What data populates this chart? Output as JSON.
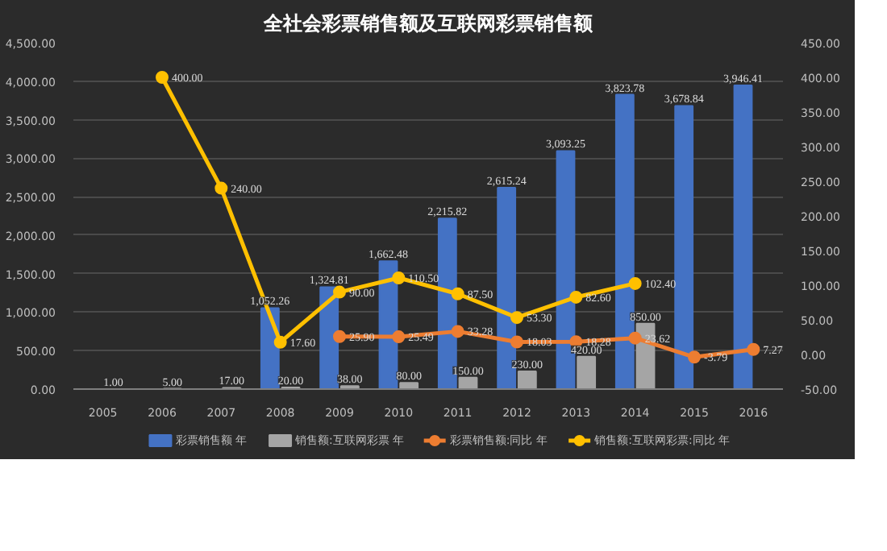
{
  "chart_data": {
    "type": "bar",
    "title": "全社会彩票销售额及互联网彩票销售额",
    "categories": [
      "2005",
      "2006",
      "2007",
      "2008",
      "2009",
      "2010",
      "2011",
      "2012",
      "2013",
      "2014",
      "2015",
      "2016"
    ],
    "series": [
      {
        "name": "彩票销售额 年",
        "color": "#4472c4",
        "values": [
          null,
          null,
          null,
          1052.26,
          1324.81,
          1662.48,
          2215.82,
          2615.24,
          3093.25,
          3823.78,
          3678.84,
          3946.41
        ],
        "value_labels": [
          null,
          null,
          null,
          "1,052.26",
          "1,324.81",
          "1,662.48",
          "2,215.82",
          "2,615.24",
          "3,093.25",
          "3,823.78",
          "3,678.84",
          "3,946.41"
        ]
      },
      {
        "name": "销售额:互联网彩票 年",
        "color": "#a5a5a5",
        "values": [
          1,
          5,
          17,
          20,
          38,
          80,
          150,
          230,
          420,
          850,
          null,
          null
        ],
        "value_labels": [
          "1.00",
          "5.00",
          "17.00",
          "20.00",
          "38.00",
          "80.00",
          "150.00",
          "230.00",
          "420.00",
          "850.00",
          null,
          null
        ]
      },
      {
        "name": "彩票销售额:同比 年",
        "type": "line",
        "axis": "y2",
        "color": "#ed7d31",
        "values": [
          null,
          null,
          null,
          null,
          25.9,
          25.49,
          33.28,
          18.03,
          18.28,
          23.62,
          -3.79,
          7.27
        ],
        "value_labels": [
          null,
          null,
          null,
          null,
          "25.90",
          "25.49",
          "33.28",
          "18.03",
          "18.28",
          "23.62",
          "-3.79",
          "7.27"
        ]
      },
      {
        "name": "销售额:互联网彩票:同比 年",
        "type": "line",
        "axis": "y2",
        "color": "#ffc000",
        "values": [
          null,
          400,
          240,
          17.6,
          90,
          110.5,
          87.5,
          53.3,
          82.6,
          102.4,
          null,
          null
        ],
        "value_labels": [
          null,
          "400.00",
          "240.00",
          "17.60",
          "90.00",
          "110.50",
          "87.50",
          "53.30",
          "82.60",
          "102.40",
          null,
          null
        ]
      }
    ],
    "ylim": [
      0,
      4500
    ],
    "yticks": [
      {
        "value": 0,
        "label": "0.00"
      },
      {
        "value": 500,
        "label": "500.00"
      },
      {
        "value": 1000,
        "label": "1,000.00"
      },
      {
        "value": 1500,
        "label": "1,500.00"
      },
      {
        "value": 2000,
        "label": "2,000.00"
      },
      {
        "value": 2500,
        "label": "2,500.00"
      },
      {
        "value": 3000,
        "label": "3,000.00"
      },
      {
        "value": 3500,
        "label": "3,500.00"
      },
      {
        "value": 4000,
        "label": "4,000.00"
      },
      {
        "value": 4500,
        "label": "4,500.00"
      }
    ],
    "y2lim": [
      -50,
      450
    ],
    "y2ticks": [
      {
        "value": -50,
        "label": "-50.00"
      },
      {
        "value": 0,
        "label": "0.00"
      },
      {
        "value": 50,
        "label": "50.00"
      },
      {
        "value": 100,
        "label": "100.00"
      },
      {
        "value": 150,
        "label": "150.00"
      },
      {
        "value": 200,
        "label": "200.00"
      },
      {
        "value": 250,
        "label": "250.00"
      },
      {
        "value": 300,
        "label": "300.00"
      },
      {
        "value": 350,
        "label": "350.00"
      },
      {
        "value": 400,
        "label": "400.00"
      },
      {
        "value": 450,
        "label": "450.00"
      }
    ],
    "grid": "y",
    "legend": "bottom",
    "marker": "circle"
  }
}
